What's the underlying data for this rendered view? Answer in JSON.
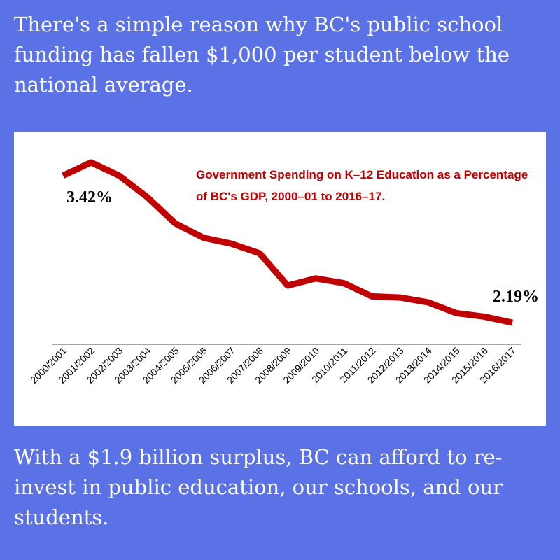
{
  "header": {
    "text": "There's a simple reason why BC's public school funding has fallen $1,000 per student below the national average."
  },
  "chart_data": {
    "type": "line",
    "title": "Government Spending on K–12 Education as a Percentage of BC's GDP, 2000–01 to 2016–17.",
    "categories": [
      "2000/2001",
      "2001/2002",
      "2002/2003",
      "2003/2004",
      "2004/2005",
      "2005/2006",
      "2006/2007",
      "2007/2008",
      "2008/2009",
      "2009/2010",
      "2010/2011",
      "2011/2012",
      "2012/2013",
      "2013/2014",
      "2014/2015",
      "2015/2016",
      "2016/2017"
    ],
    "values": [
      3.42,
      3.53,
      3.42,
      3.24,
      3.02,
      2.9,
      2.85,
      2.77,
      2.5,
      2.56,
      2.52,
      2.41,
      2.4,
      2.36,
      2.27,
      2.24,
      2.19
    ],
    "value_labels": [
      "3.42%",
      null,
      null,
      null,
      null,
      null,
      null,
      null,
      null,
      null,
      null,
      null,
      null,
      null,
      null,
      null,
      "2.19%"
    ],
    "color": "#c00000"
  },
  "footer": {
    "text": "With a $1.9 billion surplus, BC can afford to re-invest in public education, our schools, and our students."
  }
}
